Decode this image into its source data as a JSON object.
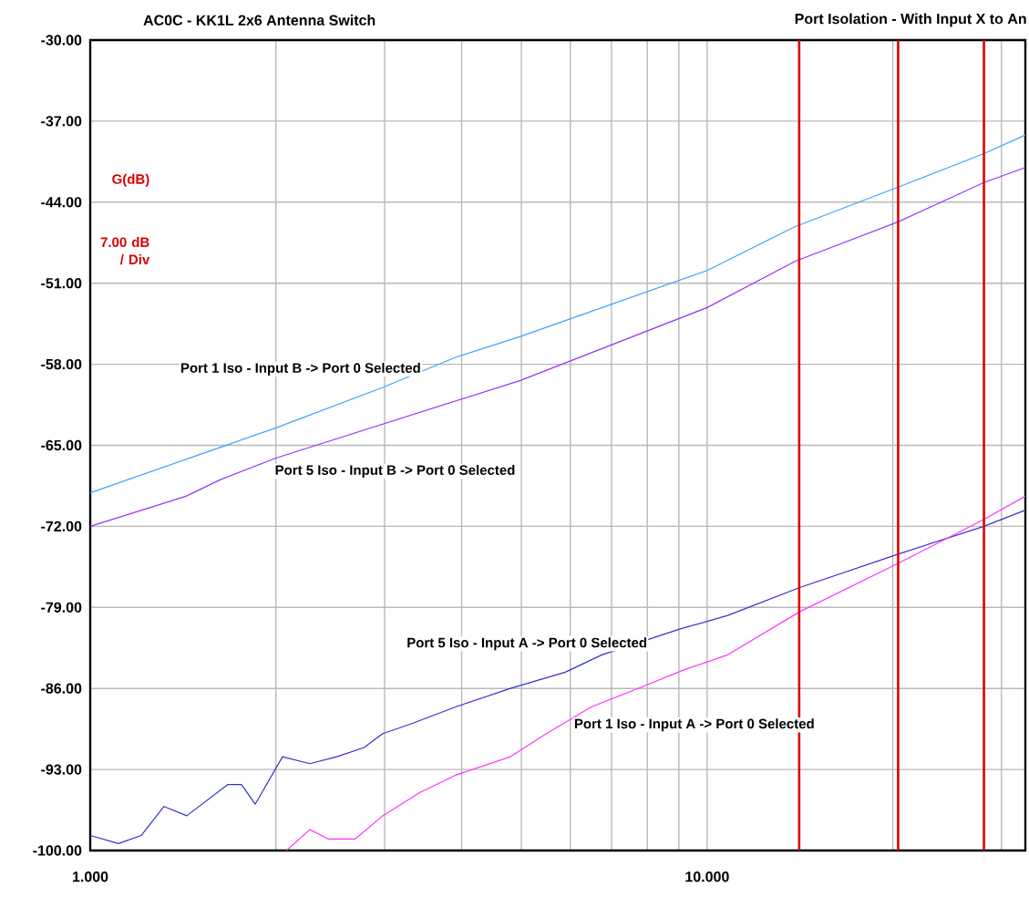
{
  "chart_data": {
    "type": "line",
    "title": "AC0C - KK1L 2x6 Antenna Switch",
    "subtitle": "Port Isolation - With Input X to An",
    "log": "x",
    "grid": true,
    "xlim": [
      1,
      32.8
    ],
    "ylim": [
      -100,
      -30
    ],
    "xticks": [
      {
        "value": 1,
        "label": "1.000"
      },
      {
        "value": 2,
        "label": null
      },
      {
        "value": 3,
        "label": null
      },
      {
        "value": 4,
        "label": null
      },
      {
        "value": 5,
        "label": null
      },
      {
        "value": 6,
        "label": null
      },
      {
        "value": 7,
        "label": null
      },
      {
        "value": 8,
        "label": null
      },
      {
        "value": 9,
        "label": null
      },
      {
        "value": 10,
        "label": "10.000"
      },
      {
        "value": 20,
        "label": null
      },
      {
        "value": 30,
        "label": null
      }
    ],
    "yticks": [
      {
        "value": -30,
        "label": "-30.00"
      },
      {
        "value": -37,
        "label": "-37.00"
      },
      {
        "value": -44,
        "label": "-44.00"
      },
      {
        "value": -51,
        "label": "-51.00"
      },
      {
        "value": -58,
        "label": "-58.00"
      },
      {
        "value": -65,
        "label": "-65.00"
      },
      {
        "value": -72,
        "label": "-72.00"
      },
      {
        "value": -79,
        "label": "-79.00"
      },
      {
        "value": -86,
        "label": "-86.00"
      },
      {
        "value": -93,
        "label": "-93.00"
      },
      {
        "value": -100,
        "label": "-100.00"
      }
    ],
    "series": [
      {
        "color": "#3fa0ff",
        "x": [
          1,
          2,
          2.98,
          null,
          3.91,
          4.98,
          10,
          13.9,
          20.4,
          28.1,
          32.8
        ],
        "values": [
          -69.1,
          -63.5,
          -60.0,
          null,
          -57.4,
          -55.6,
          -49.9,
          -46.1,
          -42.7,
          -39.8,
          -38.2
        ]
      },
      {
        "color": "#9933ff",
        "x": [
          1,
          1.43,
          1.62,
          null,
          2.0,
          4.98,
          10,
          13.9,
          20.4,
          28.1,
          32.8
        ],
        "values": [
          -72.0,
          -69.4,
          -68.0,
          null,
          -66.1,
          -59.4,
          -53.1,
          -49.1,
          -45.7,
          -42.3,
          -41.0
        ]
      },
      {
        "color": "#3333cc",
        "x": [
          1,
          1.111,
          1.21,
          1.317,
          1.434,
          1.672,
          1.759,
          1.851,
          2.05,
          2.27,
          2.51,
          2.78,
          2.98,
          3.3,
          3.91,
          4.8,
          5.89,
          6.75,
          null,
          9.0,
          10.8,
          14.1,
          20.4,
          28.1,
          32.8
        ],
        "values": [
          -98.7,
          -99.4,
          -98.7,
          -96.2,
          -97.0,
          -94.3,
          -94.3,
          -96.0,
          -91.9,
          -92.5,
          -91.9,
          -91.1,
          -89.9,
          -89.1,
          -87.6,
          -86.0,
          -84.6,
          -83.1,
          null,
          -80.9,
          -79.7,
          -77.3,
          -74.4,
          -72.0,
          -70.6
        ]
      },
      {
        "color": "#ff33ff",
        "x": [
          2.08,
          2.27,
          2.43,
          2.69,
          2.98,
          3.42,
          3.91,
          4.8,
          5.49,
          null,
          6.49,
          7.73,
          9.17,
          10.8,
          14.1,
          20.4,
          28.1,
          32.8
        ],
        "values": [
          -100,
          -98.2,
          -99.0,
          -99.0,
          -97.0,
          -95.0,
          -93.5,
          -91.9,
          -89.9,
          null,
          -87.6,
          -86.0,
          -84.4,
          -83.1,
          -79.4,
          -75.2,
          -71.4,
          -69.4
        ]
      }
    ],
    "ref_lines": [
      {
        "axis": "x",
        "value": 14.1,
        "color": "#dd0000"
      },
      {
        "axis": "x",
        "value": 20.4,
        "color": "#dd0000"
      },
      {
        "axis": "x",
        "value": 28.1,
        "color": "#dd0000"
      }
    ],
    "annotations": [
      "G(dB)",
      "7.00 dB / Div",
      "Port 1 Iso - Input B -> Port 0 Selected",
      "Port 5 Iso - Input B -> Port 0 Selected",
      "Port 5 Iso - Input A -> Port 0 Selected",
      "Port 1 Iso - Input A -> Port 0 Selected"
    ]
  }
}
